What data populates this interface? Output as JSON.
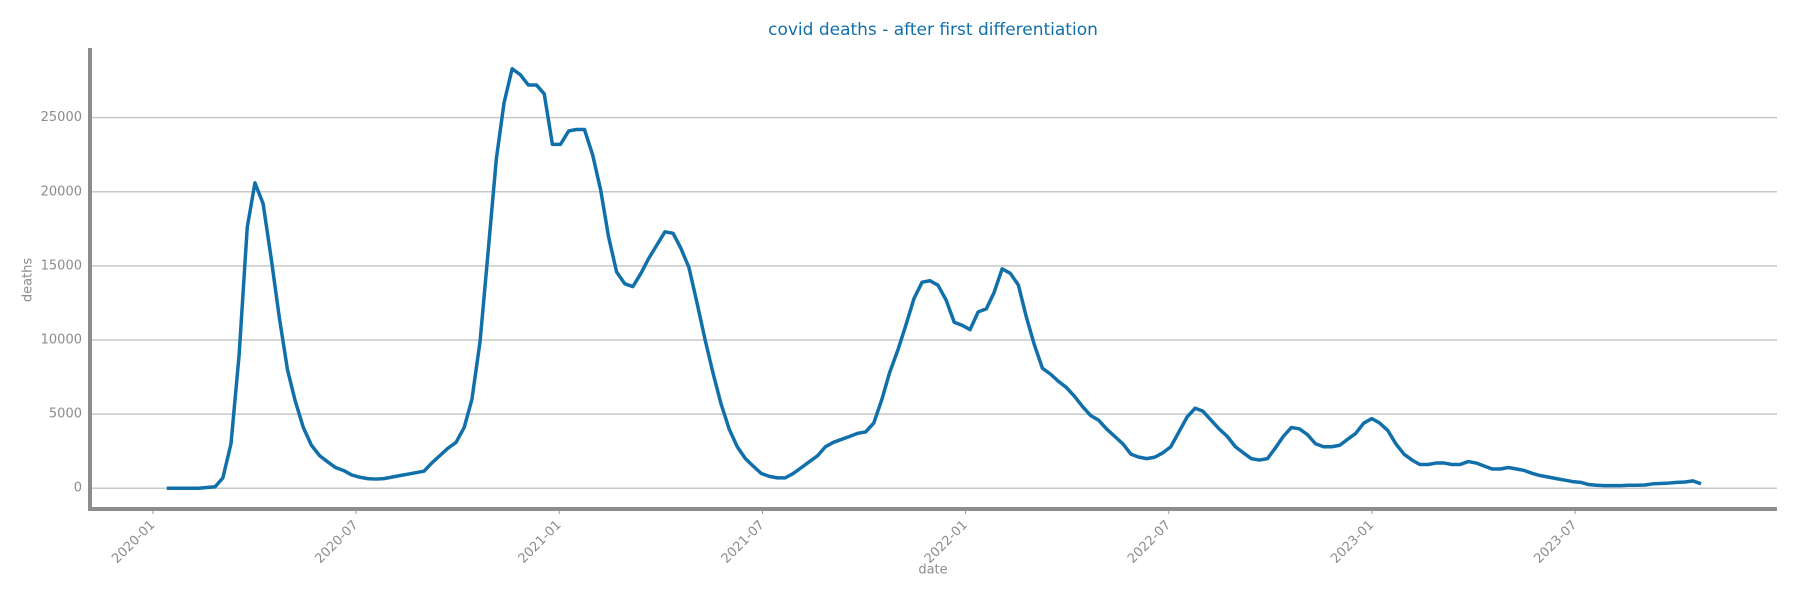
{
  "chart_data": {
    "type": "line",
    "title": "covid deaths - after first differentiation",
    "xlabel": "date",
    "ylabel": "deaths",
    "x": [
      2020.034,
      2020.054,
      2020.073,
      2020.093,
      2020.113,
      2020.133,
      2020.153,
      2020.172,
      2020.192,
      2020.212,
      2020.232,
      2020.251,
      2020.271,
      2020.291,
      2020.311,
      2020.331,
      2020.35,
      2020.37,
      2020.39,
      2020.41,
      2020.429,
      2020.449,
      2020.469,
      2020.489,
      2020.508,
      2020.528,
      2020.548,
      2020.568,
      2020.588,
      2020.607,
      2020.627,
      2020.647,
      2020.667,
      2020.686,
      2020.706,
      2020.726,
      2020.746,
      2020.766,
      2020.785,
      2020.805,
      2020.825,
      2020.845,
      2020.864,
      2020.884,
      2020.904,
      2020.924,
      2020.944,
      2020.963,
      2020.983,
      2021.003,
      2021.023,
      2021.042,
      2021.062,
      2021.082,
      2021.102,
      2021.121,
      2021.141,
      2021.161,
      2021.181,
      2021.201,
      2021.22,
      2021.24,
      2021.26,
      2021.28,
      2021.299,
      2021.319,
      2021.339,
      2021.359,
      2021.379,
      2021.398,
      2021.418,
      2021.438,
      2021.458,
      2021.477,
      2021.497,
      2021.517,
      2021.537,
      2021.556,
      2021.576,
      2021.596,
      2021.616,
      2021.636,
      2021.655,
      2021.675,
      2021.695,
      2021.715,
      2021.734,
      2021.754,
      2021.774,
      2021.794,
      2021.813,
      2021.833,
      2021.853,
      2021.873,
      2021.893,
      2021.912,
      2021.932,
      2021.952,
      2021.972,
      2021.991,
      2022.011,
      2022.031,
      2022.051,
      2022.07,
      2022.09,
      2022.11,
      2022.13,
      2022.15,
      2022.169,
      2022.189,
      2022.209,
      2022.229,
      2022.248,
      2022.268,
      2022.288,
      2022.308,
      2022.327,
      2022.347,
      2022.367,
      2022.387,
      2022.407,
      2022.426,
      2022.446,
      2022.466,
      2022.486,
      2022.505,
      2022.525,
      2022.545,
      2022.565,
      2022.584,
      2022.604,
      2022.624,
      2022.644,
      2022.664,
      2022.683,
      2022.703,
      2022.723,
      2022.743,
      2022.762,
      2022.782,
      2022.802,
      2022.822,
      2022.842,
      2022.861,
      2022.881,
      2022.901,
      2022.921,
      2022.94,
      2022.96,
      2022.98,
      2023.0,
      2023.019,
      2023.039,
      2023.059,
      2023.079,
      2023.099,
      2023.118,
      2023.138,
      2023.158,
      2023.178,
      2023.197,
      2023.217,
      2023.237,
      2023.257,
      2023.276,
      2023.296,
      2023.316,
      2023.336,
      2023.356,
      2023.375,
      2023.395,
      2023.415,
      2023.435,
      2023.454,
      2023.474,
      2023.494,
      2023.514,
      2023.533,
      2023.553,
      2023.573,
      2023.593,
      2023.613,
      2023.632,
      2023.652,
      2023.672,
      2023.692,
      2023.711,
      2023.731,
      2023.751,
      2023.771,
      2023.79,
      2023.81
    ],
    "series": [
      {
        "name": "deaths",
        "color": "#1170aa",
        "values": [
          0,
          0,
          0,
          0,
          0,
          50,
          100,
          700,
          3000,
          9000,
          17600,
          20600,
          19200,
          15500,
          11500,
          8000,
          5900,
          4100,
          2900,
          2200,
          1800,
          1400,
          1200,
          900,
          750,
          650,
          620,
          650,
          750,
          850,
          950,
          1050,
          1150,
          1700,
          2200,
          2700,
          3100,
          4100,
          6000,
          9900,
          16000,
          22200,
          26000,
          28300,
          27900,
          27200,
          27200,
          26600,
          23200,
          23200,
          24100,
          24200,
          24200,
          22500,
          20100,
          17000,
          14600,
          13800,
          13600,
          14500,
          15500,
          16400,
          17300,
          17200,
          16200,
          14900,
          12500,
          10000,
          7700,
          5700,
          4000,
          2800,
          2000,
          1500,
          1000,
          800,
          700,
          700,
          1000,
          1400,
          1800,
          2200,
          2800,
          3100,
          3300,
          3500,
          3700,
          3800,
          4400,
          6000,
          7800,
          9300,
          11000,
          12800,
          13900,
          14000,
          13700,
          12700,
          11200,
          11000,
          10700,
          11900,
          12100,
          13200,
          14800,
          14500,
          13700,
          11500,
          9700,
          8100,
          7700,
          7200,
          6800,
          6200,
          5500,
          4900,
          4600,
          4000,
          3500,
          3000,
          2300,
          2100,
          2000,
          2100,
          2400,
          2800,
          3800,
          4800,
          5400,
          5200,
          4600,
          4000,
          3500,
          2800,
          2400,
          2000,
          1900,
          2000,
          2700,
          3500,
          4100,
          4000,
          3600,
          3000,
          2800,
          2800,
          2900,
          3300,
          3700,
          4400,
          4700,
          4400,
          3900,
          3000,
          2300,
          1900,
          1600,
          1600,
          1700,
          1700,
          1600,
          1600,
          1800,
          1700,
          1500,
          1300,
          1300,
          1400,
          1300,
          1200,
          1000,
          850,
          750,
          650,
          550,
          450,
          400,
          250,
          200,
          180,
          180,
          180,
          200,
          200,
          220,
          300,
          320,
          350,
          400,
          420,
          500,
          300
        ]
      }
    ],
    "xlim": [
      2019.845,
      2023.997
    ],
    "ylim": [
      -1400,
      29700
    ],
    "xticks": [
      {
        "value": 2020,
        "label": "2020-01"
      },
      {
        "value": 2020.5,
        "label": "2020-07"
      },
      {
        "value": 2021,
        "label": "2021-01"
      },
      {
        "value": 2021.5,
        "label": "2021-07"
      },
      {
        "value": 2022,
        "label": "2022-01"
      },
      {
        "value": 2022.5,
        "label": "2022-07"
      },
      {
        "value": 2023,
        "label": "2023-01"
      },
      {
        "value": 2023.5,
        "label": "2023-07"
      }
    ],
    "yticks": [
      0,
      5000,
      10000,
      15000,
      20000,
      25000
    ],
    "grid": true
  }
}
